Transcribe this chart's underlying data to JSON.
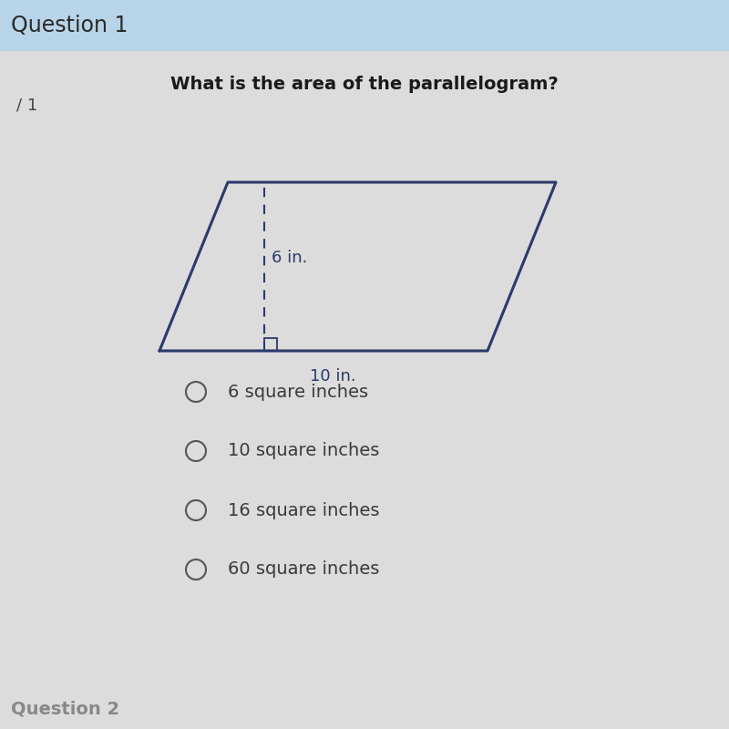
{
  "bg_color": "#dcdcdc",
  "header_bg_color": "#b8d4e8",
  "header_text": "Question 1",
  "header_fontsize": 17,
  "header_text_color": "#2a2a2a",
  "score_text": "/ 1",
  "score_fontsize": 13,
  "score_color": "#444444",
  "question_text": "What is the area of the parallelogram?",
  "question_fontsize": 14,
  "question_color": "#1a1a1a",
  "para_color": "#2a3a6a",
  "para_linewidth": 2.2,
  "height_label": "6 in.",
  "base_label": "10 in.",
  "label_fontsize": 13,
  "label_color": "#2a3a6a",
  "choices": [
    "6 square inches",
    "10 square inches",
    "16 square inches",
    "60 square inches"
  ],
  "choices_fontsize": 14,
  "choice_color": "#3a3a3a",
  "circle_color": "#555555",
  "footer_text": "Question 2",
  "footer_fontsize": 14,
  "footer_color": "#888888"
}
